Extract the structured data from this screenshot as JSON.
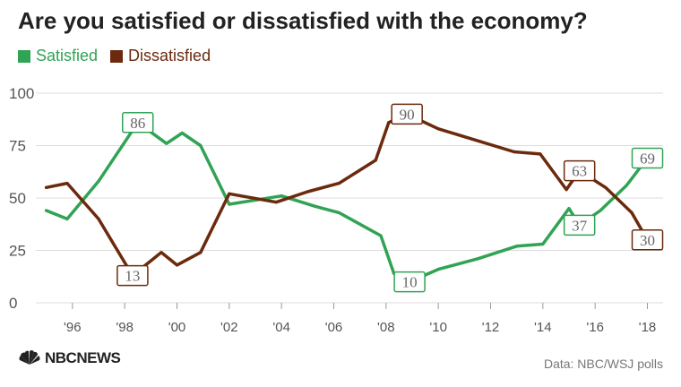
{
  "title": "Are you satisfied or dissatisfied with the economy?",
  "source": "Data: NBC/WSJ polls",
  "logo": {
    "text": "NBCNEWS",
    "icon": "peacock-icon"
  },
  "colors": {
    "satisfied": "#31a354",
    "dissatisfied": "#6b2a0d",
    "grid": "#dddddd",
    "axis_text": "#555555"
  },
  "chart_data": {
    "type": "line",
    "title": "Are you satisfied or dissatisfied with the economy?",
    "xlabel": "",
    "ylabel": "",
    "xlim": [
      1994.6,
      2018.6
    ],
    "ylim": [
      0,
      100
    ],
    "y_ticks": [
      0,
      25,
      50,
      75,
      100
    ],
    "x_ticks": [
      {
        "value": 1996,
        "label": "'96"
      },
      {
        "value": 1998,
        "label": "'98"
      },
      {
        "value": 2000,
        "label": "'00"
      },
      {
        "value": 2002,
        "label": "'02"
      },
      {
        "value": 2004,
        "label": "'04"
      },
      {
        "value": 2006,
        "label": "'06"
      },
      {
        "value": 2008,
        "label": "'08"
      },
      {
        "value": 2010,
        "label": "'10"
      },
      {
        "value": 2012,
        "label": "'12"
      },
      {
        "value": 2014,
        "label": "'14"
      },
      {
        "value": 2016,
        "label": "'16"
      },
      {
        "value": 2018,
        "label": "'18"
      }
    ],
    "grid": true,
    "legend": "top-left",
    "series": [
      {
        "name": "Satisfied",
        "color": "#31a354",
        "points": [
          [
            1995,
            44
          ],
          [
            1995.8,
            40
          ],
          [
            1997,
            58
          ],
          [
            1998.5,
            86
          ],
          [
            1999.6,
            76
          ],
          [
            2000.2,
            81
          ],
          [
            2000.9,
            75
          ],
          [
            2002,
            47
          ],
          [
            2004,
            51
          ],
          [
            2005.3,
            46
          ],
          [
            2006.2,
            43
          ],
          [
            2007.8,
            32
          ],
          [
            2008.3,
            14
          ],
          [
            2008.9,
            10
          ],
          [
            2010,
            16
          ],
          [
            2011.5,
            21
          ],
          [
            2013,
            27
          ],
          [
            2014,
            28
          ],
          [
            2015,
            45
          ],
          [
            2015.4,
            37
          ],
          [
            2016.2,
            44
          ],
          [
            2017.2,
            56
          ],
          [
            2018,
            69
          ]
        ],
        "labels": [
          {
            "x": 1998.5,
            "y": 86,
            "text": "86"
          },
          {
            "x": 2008.9,
            "y": 10,
            "text": "10"
          },
          {
            "x": 2015.4,
            "y": 37,
            "text": "37"
          },
          {
            "x": 2018,
            "y": 69,
            "text": "69"
          }
        ]
      },
      {
        "name": "Dissatisfied",
        "color": "#6b2a0d",
        "points": [
          [
            1995,
            55
          ],
          [
            1995.8,
            57
          ],
          [
            1997,
            40
          ],
          [
            1998.3,
            13
          ],
          [
            1999.4,
            24
          ],
          [
            2000,
            18
          ],
          [
            2000.9,
            24
          ],
          [
            2002,
            52
          ],
          [
            2003.8,
            48
          ],
          [
            2005,
            53
          ],
          [
            2006.2,
            57
          ],
          [
            2007.6,
            68
          ],
          [
            2008.1,
            86
          ],
          [
            2008.8,
            90
          ],
          [
            2010,
            83
          ],
          [
            2012.9,
            72
          ],
          [
            2013.9,
            71
          ],
          [
            2014.9,
            54
          ],
          [
            2015.4,
            63
          ],
          [
            2016.4,
            55
          ],
          [
            2017.4,
            43
          ],
          [
            2018,
            30
          ]
        ],
        "labels": [
          {
            "x": 1998.3,
            "y": 13,
            "text": "13"
          },
          {
            "x": 2008.8,
            "y": 90,
            "text": "90"
          },
          {
            "x": 2015.4,
            "y": 63,
            "text": "63"
          },
          {
            "x": 2018,
            "y": 30,
            "text": "30"
          }
        ]
      }
    ]
  }
}
